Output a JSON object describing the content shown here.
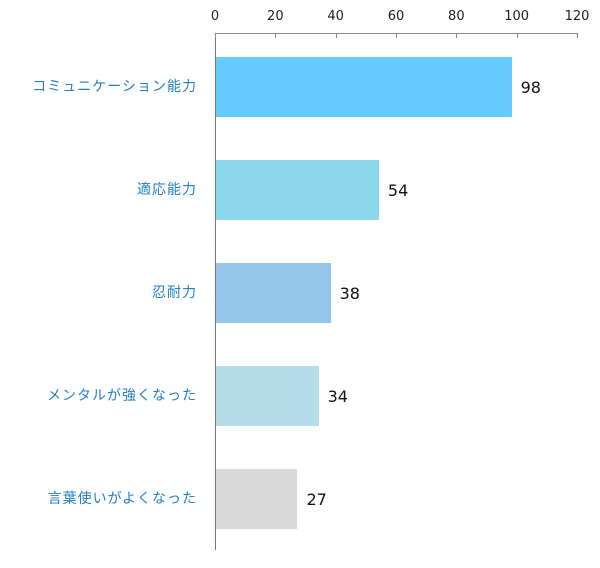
{
  "chart_data": {
    "type": "bar",
    "orientation": "horizontal",
    "title": "",
    "xlabel": "",
    "ylabel": "",
    "xlim": [
      0,
      120
    ],
    "x_ticks": [
      "0",
      "20",
      "40",
      "60",
      "80",
      "100",
      "120"
    ],
    "axis_position": "top",
    "grid": false,
    "legend": null,
    "categories": [
      "コミュニケーション能力",
      "適応能力",
      "忍耐力",
      "メンタルが強くなった",
      "言葉使いがよくなった"
    ],
    "values": [
      98,
      54,
      38,
      34,
      27
    ],
    "value_labels": [
      "98",
      "54",
      "38",
      "34",
      "27"
    ],
    "colors": [
      "#66ccff",
      "#8ad8ea",
      "#94c6ea",
      "#b6dde9",
      "#d9d9d9"
    ],
    "category_label_color": "#1f7ec6"
  }
}
